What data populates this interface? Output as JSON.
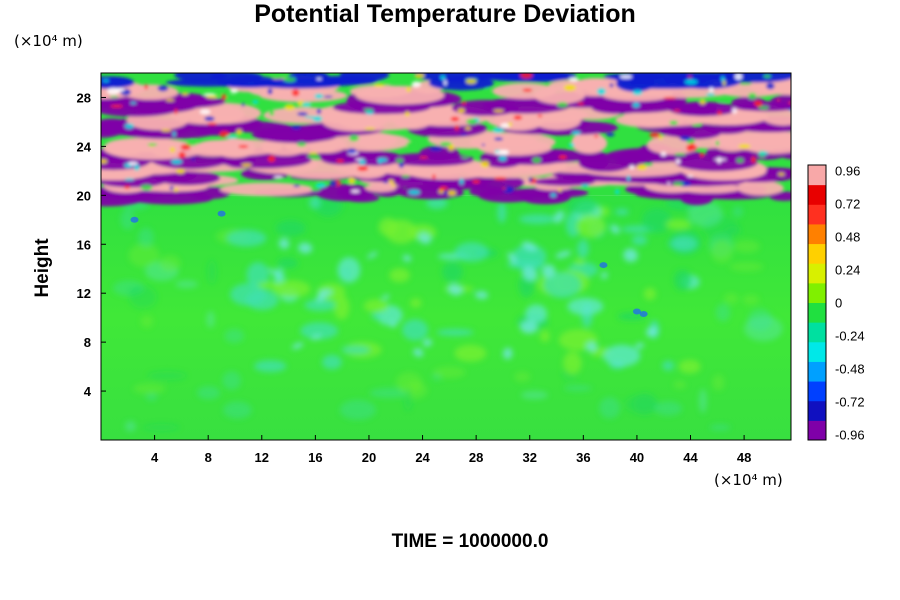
{
  "chart_data": {
    "type": "heatmap",
    "title": "Potential Temperature Deviation",
    "ylabel": "Height",
    "x_unit": "(×10⁴ m)",
    "y_unit": "(×10⁴ m)",
    "footer": "TIME = 1000000.0",
    "xlim": [
      0,
      51.5
    ],
    "ylim": [
      0,
      30
    ],
    "x_ticks": [
      4,
      8,
      12,
      16,
      20,
      24,
      28,
      32,
      36,
      40,
      44,
      48
    ],
    "y_ticks": [
      4,
      8,
      12,
      16,
      20,
      24,
      28
    ],
    "colorbar": {
      "ticks": [
        0.96,
        0.72,
        0.48,
        0.24,
        0,
        -0.24,
        -0.48,
        -0.72,
        -0.96
      ],
      "range": [
        -1.0,
        1.0
      ],
      "colors": [
        "#7f00a8",
        "#1010c0",
        "#0040ff",
        "#00a0ff",
        "#00e8e8",
        "#00e0a0",
        "#20e040",
        "#80f000",
        "#d8f000",
        "#ffd000",
        "#ff8000",
        "#ff3020",
        "#e80000",
        "#f8a8a8"
      ]
    },
    "field_description_regions": [
      {
        "y_range": [
          0,
          20
        ],
        "value": 0.0
      },
      {
        "y_range": [
          20,
          30
        ],
        "value": "banded ±0.96"
      }
    ]
  }
}
